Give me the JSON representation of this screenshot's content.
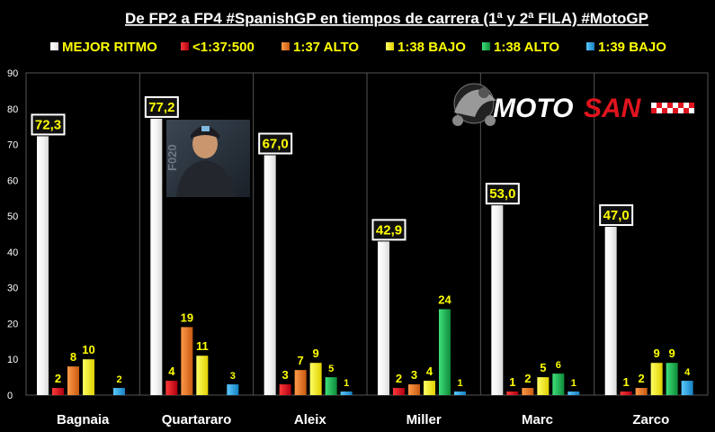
{
  "colors": {
    "background": "#000000",
    "grid": "#555555",
    "text": "#ffffff",
    "label": "#ffff00"
  },
  "logo": {
    "text_white": "MOTO",
    "text_red": "SAN"
  },
  "photo": {
    "jersey_text": "F020"
  },
  "chart_data": {
    "type": "bar",
    "title": "De FP2 a FP4 #SpanishGP en tiempos de carrera (1ª y 2ª FILA) #MotoGP",
    "categories": [
      "Bagnaia",
      "Quartararo",
      "Aleix",
      "Miller",
      "Marc",
      "Zarco"
    ],
    "ylim": [
      0,
      90
    ],
    "yticks": [
      0,
      10,
      20,
      30,
      40,
      50,
      60,
      70,
      80,
      90
    ],
    "grid": "vertical separators",
    "legend_position": "top",
    "series": [
      {
        "name": "MEJOR RITMO",
        "color": "#ffffff",
        "values": [
          72.3,
          77.2,
          67.0,
          42.9,
          53.0,
          47.0
        ],
        "labels": [
          "72,3",
          "77,2",
          "67,0",
          "42,9",
          "53,0",
          "47,0"
        ]
      },
      {
        "name": "<1:37:500",
        "color": "#e0141e",
        "values": [
          2,
          4,
          3,
          2,
          1,
          1
        ],
        "labels": [
          "2",
          "4",
          "3",
          "2",
          "1",
          "1"
        ]
      },
      {
        "name": "1:37 ALTO",
        "color": "#e87722",
        "values": [
          8,
          19,
          7,
          3,
          2,
          2
        ],
        "labels": [
          "8",
          "19",
          "7",
          "3",
          "2",
          "2"
        ]
      },
      {
        "name": "1:38 BAJO",
        "color": "#ffff00",
        "values": [
          10,
          11,
          9,
          4,
          5,
          9
        ],
        "labels": [
          "10",
          "11",
          "9",
          "4",
          "5",
          "9"
        ]
      },
      {
        "name": "1:38 ALTO",
        "color": "#1db954",
        "values": [
          0,
          0,
          5,
          24,
          6,
          9
        ],
        "labels": [
          "",
          "",
          "5",
          "24",
          "6",
          "9"
        ]
      },
      {
        "name": "1:39 BAJO",
        "color": "#29a8e0",
        "values": [
          2,
          3,
          1,
          1,
          1,
          4
        ],
        "labels": [
          "2",
          "3",
          "1",
          "1",
          "1",
          "4"
        ]
      }
    ]
  }
}
